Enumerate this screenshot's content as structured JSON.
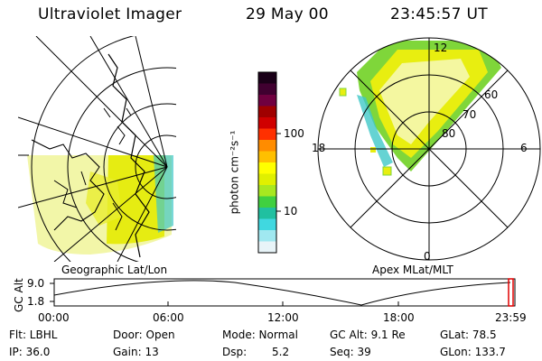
{
  "header": {
    "title": "Ultraviolet Imager",
    "date": "29 May 00",
    "time": "23:45:57 UT"
  },
  "colorbar": {
    "label": "photon cm⁻²s⁻¹",
    "ticks": [
      "100",
      "10"
    ],
    "colors": [
      "#1a0018",
      "#400030",
      "#700040",
      "#a00000",
      "#d00000",
      "#ff3000",
      "#ff8c00",
      "#ffc000",
      "#ffff00",
      "#e0f000",
      "#a8e820",
      "#40d040",
      "#20c0a0",
      "#40d8e0",
      "#a0e8f0",
      "#e8f4f8"
    ]
  },
  "panels": {
    "left_label": "Geographic Lat/Lon",
    "right_label": "Apex MLat/MLT"
  },
  "polar_plot": {
    "mlt_labels": {
      "top": "12",
      "bottom": "0",
      "left": "18",
      "right": "6"
    },
    "lat_labels": [
      "60",
      "70",
      "80"
    ]
  },
  "timeline": {
    "axis_label": "GC Alt",
    "y_ticks": [
      "9.0",
      "1.8"
    ],
    "x_ticks": [
      "00:00",
      "06:00",
      "12:00",
      "18:00",
      "23:59"
    ]
  },
  "footer": {
    "row1": {
      "flt": "Flt: LBHL",
      "door": "Door: Open",
      "mode": "Mode: Normal",
      "gcalt": "GC Alt: 9.1 Re",
      "glat": "GLat:  78.5"
    },
    "row2": {
      "ip": "IP: 36.0",
      "gain": "Gain: 13",
      "dsp_label": "Dsp:",
      "dsp_value": "5.2",
      "seq": "Seq: 39",
      "glon": "GLon: 133.7"
    }
  },
  "colors": {
    "aurora_green": "#7fd63a",
    "aurora_yellow": "#e8ee10",
    "aurora_pale": "#f4f7a0",
    "aurora_cyan": "#40c8c8",
    "marker_red": "#e00000"
  }
}
